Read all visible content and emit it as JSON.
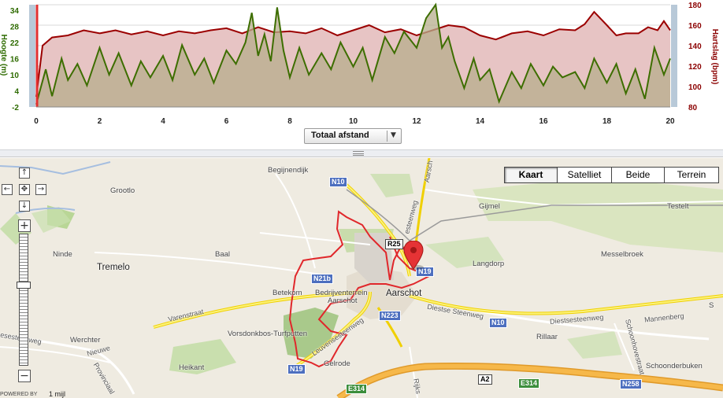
{
  "chart_data": {
    "type": "line",
    "x_axis": {
      "ticks": [
        "0",
        "2",
        "4",
        "6",
        "8",
        "10",
        "12",
        "14",
        "16",
        "18",
        "20"
      ],
      "range": [
        0,
        20
      ]
    },
    "left_axis": {
      "label": "Hoogte (m)",
      "ticks": [
        "-2",
        "4",
        "10",
        "16",
        "22",
        "28",
        "34"
      ],
      "range": [
        -2,
        36
      ],
      "color": "#2e6b00"
    },
    "right_axis": {
      "label": "Hartslag (bpm)",
      "ticks": [
        "80",
        "100",
        "120",
        "140",
        "160",
        "180"
      ],
      "range": [
        80,
        180
      ],
      "color": "#8b0000"
    },
    "series": [
      {
        "axis": "right",
        "color": "#9b0000",
        "fill": "#e7c4c4",
        "x": [
          0,
          0.2,
          0.5,
          1,
          1.5,
          2,
          2.5,
          3,
          3.5,
          4,
          4.5,
          5,
          5.5,
          6,
          6.5,
          7,
          7.5,
          8,
          8.5,
          9,
          9.5,
          10,
          10.5,
          11,
          11.5,
          12,
          12.5,
          13,
          13.5,
          14,
          14.5,
          15,
          15.5,
          16,
          16.5,
          17,
          17.3,
          17.6,
          18,
          18.3,
          18.6,
          19,
          19.3,
          19.6,
          19.8,
          20
        ],
        "values": [
          90,
          140,
          148,
          150,
          155,
          152,
          155,
          151,
          154,
          150,
          154,
          152,
          155,
          157,
          152,
          158,
          153,
          154,
          152,
          157,
          150,
          155,
          160,
          153,
          156,
          150,
          155,
          160,
          158,
          150,
          146,
          152,
          154,
          150,
          156,
          155,
          161,
          173,
          160,
          150,
          152,
          152,
          158,
          155,
          164,
          155
        ]
      },
      {
        "axis": "left",
        "color": "#3d6e00",
        "fill": "#b7ad8c",
        "x": [
          0,
          0.3,
          0.5,
          0.8,
          1,
          1.3,
          1.6,
          2,
          2.3,
          2.6,
          3,
          3.3,
          3.6,
          4,
          4.3,
          4.6,
          5,
          5.3,
          5.6,
          6,
          6.3,
          6.6,
          6.8,
          7,
          7.2,
          7.4,
          7.6,
          7.8,
          8,
          8.3,
          8.6,
          9,
          9.3,
          9.6,
          10,
          10.3,
          10.6,
          11,
          11.3,
          11.6,
          12,
          12.3,
          12.6,
          12.8,
          13,
          13.2,
          13.5,
          13.8,
          14,
          14.3,
          14.6,
          15,
          15.3,
          15.6,
          16,
          16.3,
          16.6,
          17,
          17.3,
          17.6,
          18,
          18.3,
          18.6,
          18.9,
          19.2,
          19.5,
          19.8,
          20
        ],
        "values": [
          -1,
          12,
          2,
          16,
          8,
          14,
          6,
          20,
          10,
          18,
          6,
          15,
          9,
          17,
          8,
          21,
          10,
          16,
          7,
          19,
          14,
          22,
          33,
          17,
          25,
          15,
          35,
          19,
          9,
          20,
          10,
          18,
          12,
          22,
          13,
          20,
          8,
          24,
          18,
          26,
          20,
          31,
          36,
          20,
          24,
          15,
          5,
          16,
          8,
          12,
          0,
          11,
          5,
          14,
          6,
          13,
          9,
          11,
          5,
          16,
          7,
          14,
          3,
          12,
          1,
          20,
          10,
          16
        ]
      }
    ]
  },
  "controls": {
    "dropdown_label": "Totaal afstand",
    "dropdown_arrow": "▼"
  },
  "map": {
    "map_types": [
      "Kaart",
      "Satelliet",
      "Beide",
      "Terrein"
    ],
    "active_type": "Kaart",
    "nav_icons": {
      "up": "↑",
      "down": "↓",
      "left": "←",
      "right": "→",
      "center": "✥",
      "zoom_in": "+",
      "zoom_out": "−"
    },
    "labels": {
      "begijnendijk": "Begijnendijk",
      "grootlo": "Grootlo",
      "gijmel": "Gijmel",
      "testelt": "Testelt",
      "ninde": "Ninde",
      "baal": "Baal",
      "tremelo": "Tremelo",
      "langdorp": "Langdorp",
      "messelbroek": "Messelbroek",
      "betekom": "Betekom",
      "bedrijventerrein": "Bedrijventerrein",
      "aarschot_small": "Aarschot",
      "aarschot": "Aarschot",
      "werchter": "Werchter",
      "vorsdonkbos": "Vorsdonkbos-Turfputten",
      "heikant": "Heikant",
      "gelrode": "Gelrode",
      "rillaar": "Rillaar",
      "schoonderbuken": "Schoonderbuken",
      "varenstraat": "Varenstraat",
      "leuvensesteenweg": "Leuvensesteenweg",
      "diestse_steenweg": "Diestse Steenweg",
      "diestsesteenweg": "Diestsesteenweg",
      "mannenberg": "Mannenberg",
      "nieuwe": "Nieuwe",
      "provinciaal": "Provinciaal",
      "esesteenweg": "esesteenweg",
      "schoonhovestraat": "Schoonhovestraat",
      "esteenweg": "esteenweg",
      "aarsch": "Aarsch",
      "rijks": "Rijks",
      "s_edge": "S"
    },
    "shields": {
      "n10a": "N10",
      "r25": "R25",
      "n19a": "N19",
      "n21b": "N21b",
      "n223": "N223",
      "n10b": "N10",
      "n19b": "N19",
      "a2": "A2",
      "e314a": "E314",
      "e314b": "E314",
      "n258": "N258"
    },
    "powered_by": "POWERED BY",
    "scale": "1 mijl"
  }
}
